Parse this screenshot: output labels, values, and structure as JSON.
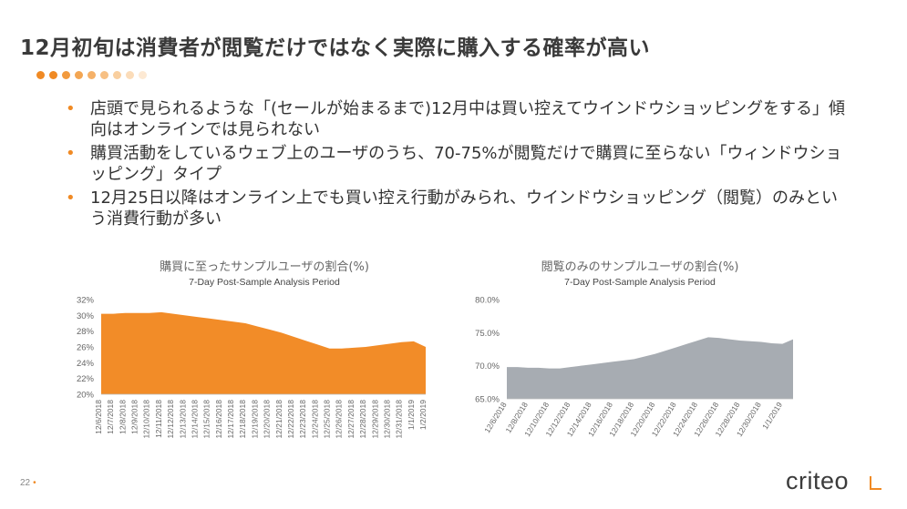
{
  "slide": {
    "title": "12月初旬は消費者が閲覧だけではなく実際に購入する確率が高い",
    "page_number": "22",
    "logo": "criteo",
    "dot_colors": [
      "#f08a24",
      "#f08a24",
      "#f29a3e",
      "#f3a653",
      "#f5b168",
      "#f7c084",
      "#f9cf9f",
      "#fbdcb9",
      "#fde9d3"
    ]
  },
  "bullets": [
    "店頭で見られるような「(セールが始まるまで)12月中は買い控えてウインドウショッピングをする」傾向はオンラインでは見られない",
    "購買活動をしているウェブ上のユーザのうち、70-75%が閲覧だけで購買に至らない「ウィンドウショッピング」タイプ",
    "12月25日以降はオンライン上でも買い控え行動がみられ、ウインドウショッピング（閲覧）のみという消費行動が多い"
  ],
  "bullet_marker": "•",
  "chart_data": [
    {
      "type": "area",
      "title": "購買に至ったサンプルユーザの割合(%)",
      "subtitle": "7-Day Post-Sample Analysis Period",
      "color": "#f28c28",
      "x": [
        "12/6/2018",
        "12/7/2018",
        "12/8/2018",
        "12/9/2018",
        "12/10/2018",
        "12/11/2018",
        "12/12/2018",
        "12/13/2018",
        "12/14/2018",
        "12/15/2018",
        "12/16/2018",
        "12/17/2018",
        "12/18/2018",
        "12/19/2018",
        "12/20/2018",
        "12/21/2018",
        "12/22/2018",
        "12/23/2018",
        "12/24/2018",
        "12/25/2018",
        "12/26/2018",
        "12/27/2018",
        "12/28/2018",
        "12/29/2018",
        "12/30/2018",
        "12/31/2018",
        "1/1/2019",
        "1/2/2019"
      ],
      "values": [
        30.2,
        30.2,
        30.3,
        30.3,
        30.3,
        30.4,
        30.2,
        30.0,
        29.8,
        29.6,
        29.4,
        29.2,
        29.0,
        28.6,
        28.2,
        27.8,
        27.3,
        26.8,
        26.3,
        25.8,
        25.8,
        25.9,
        26.0,
        26.2,
        26.4,
        26.6,
        26.7,
        26.0
      ],
      "yticks": [
        "32%",
        "30%",
        "28%",
        "26%",
        "24%",
        "22%",
        "20%"
      ],
      "ylim": [
        20,
        32
      ],
      "grid": false
    },
    {
      "type": "area",
      "title": "閲覧のみのサンプルユーザの割合(%)",
      "subtitle": "7-Day Post-Sample Analysis Period",
      "color": "#a7acb2",
      "x": [
        "12/6/2018",
        "12/7/2018",
        "12/8/2018",
        "12/9/2018",
        "12/10/2018",
        "12/11/2018",
        "12/12/2018",
        "12/13/2018",
        "12/14/2018",
        "12/15/2018",
        "12/16/2018",
        "12/17/2018",
        "12/18/2018",
        "12/19/2018",
        "12/20/2018",
        "12/21/2018",
        "12/22/2018",
        "12/23/2018",
        "12/24/2018",
        "12/25/2018",
        "12/26/2018",
        "12/27/2018",
        "12/28/2018",
        "12/29/2018",
        "12/30/2018",
        "12/31/2018",
        "1/1/2019",
        "1/2/2019"
      ],
      "xticks": [
        "12/6/2018",
        "12/8/2018",
        "12/10/2018",
        "12/12/2018",
        "12/14/2018",
        "12/16/2018",
        "12/18/2018",
        "12/20/2018",
        "12/22/2018",
        "12/24/2018",
        "12/26/2018",
        "12/28/2018",
        "12/30/2018",
        "1/1/2019"
      ],
      "values": [
        69.8,
        69.8,
        69.7,
        69.7,
        69.6,
        69.6,
        69.8,
        70.0,
        70.2,
        70.4,
        70.6,
        70.8,
        71.0,
        71.4,
        71.8,
        72.3,
        72.8,
        73.3,
        73.8,
        74.3,
        74.2,
        74.0,
        73.8,
        73.7,
        73.6,
        73.4,
        73.3,
        74.0
      ],
      "yticks": [
        "80.0%",
        "75.0%",
        "70.0%",
        "65.0%"
      ],
      "ylim": [
        65,
        80
      ],
      "grid": false
    }
  ]
}
